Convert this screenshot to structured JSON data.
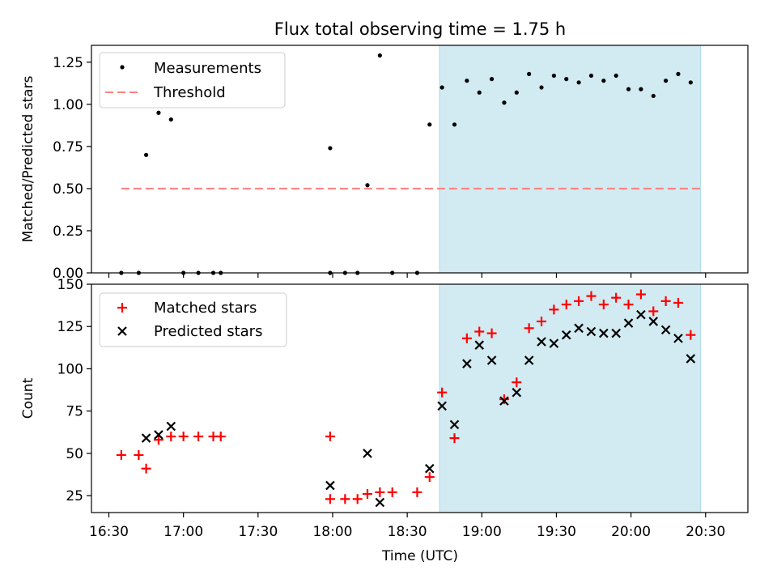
{
  "chart_data": [
    {
      "type": "scatter",
      "title": "Flux total observing time = 1.75 h",
      "xlabel": "",
      "ylabel": "Matched/Predicted stars",
      "ylim": [
        0,
        1.35
      ],
      "yticks": [
        "0.00",
        "0.25",
        "0.50",
        "0.75",
        "1.00",
        "1.25"
      ],
      "ytick_values": [
        0,
        0.25,
        0.5,
        0.75,
        1.0,
        1.25
      ],
      "x_unit": "minutes of day (UTC)",
      "xlim": [
        983,
        1247
      ],
      "shaded_region": {
        "x_start": 1123,
        "x_end": 1228,
        "color": "#add8e6"
      },
      "legend": {
        "position": "top-left",
        "entries": [
          "Measurements",
          "Threshold"
        ]
      },
      "threshold": {
        "name": "Threshold",
        "value": 0.5,
        "x_start": 995,
        "x_end": 1228,
        "color": "#ff7f7f"
      },
      "series": [
        {
          "name": "Measurements",
          "color": "#000000",
          "points": [
            [
              995,
              0
            ],
            [
              1002,
              0
            ],
            [
              1005,
              0.7
            ],
            [
              1010,
              0.95
            ],
            [
              1015,
              0.91
            ],
            [
              1020,
              0
            ],
            [
              1026,
              0
            ],
            [
              1032,
              0
            ],
            [
              1035,
              0
            ],
            [
              1079,
              0.74
            ],
            [
              1079,
              0
            ],
            [
              1085,
              0
            ],
            [
              1090,
              0
            ],
            [
              1094,
              0.52
            ],
            [
              1099,
              1.29
            ],
            [
              1104,
              0
            ],
            [
              1114,
              0
            ],
            [
              1119,
              0.88
            ],
            [
              1124,
              1.1
            ],
            [
              1129,
              0.88
            ],
            [
              1134,
              1.14
            ],
            [
              1139,
              1.07
            ],
            [
              1144,
              1.15
            ],
            [
              1149,
              1.01
            ],
            [
              1154,
              1.07
            ],
            [
              1159,
              1.18
            ],
            [
              1164,
              1.1
            ],
            [
              1169,
              1.17
            ],
            [
              1174,
              1.15
            ],
            [
              1179,
              1.13
            ],
            [
              1184,
              1.17
            ],
            [
              1189,
              1.14
            ],
            [
              1194,
              1.17
            ],
            [
              1199,
              1.09
            ],
            [
              1204,
              1.09
            ],
            [
              1209,
              1.05
            ],
            [
              1214,
              1.14
            ],
            [
              1219,
              1.18
            ],
            [
              1224,
              1.13
            ]
          ]
        }
      ]
    },
    {
      "type": "scatter",
      "title": "",
      "xlabel": "Time (UTC)",
      "ylabel": "Count",
      "ylim": [
        15,
        150
      ],
      "yticks": [
        "25",
        "50",
        "75",
        "100",
        "125",
        "150"
      ],
      "ytick_values": [
        25,
        50,
        75,
        100,
        125,
        150
      ],
      "x_unit": "minutes of day (UTC)",
      "xlim": [
        983,
        1247
      ],
      "xticks": [
        "16:30",
        "17:00",
        "17:30",
        "18:00",
        "18:30",
        "19:00",
        "19:30",
        "20:00",
        "20:30"
      ],
      "xtick_values": [
        990,
        1020,
        1050,
        1080,
        1110,
        1140,
        1170,
        1200,
        1230
      ],
      "shaded_region": {
        "x_start": 1123,
        "x_end": 1228,
        "color": "#add8e6"
      },
      "legend": {
        "position": "top-left",
        "entries": [
          "Matched stars",
          "Predicted stars"
        ]
      },
      "series": [
        {
          "name": "Matched stars",
          "marker": "plus",
          "color": "#ff0000",
          "points": [
            [
              995,
              49
            ],
            [
              1002,
              49
            ],
            [
              1005,
              41
            ],
            [
              1010,
              58
            ],
            [
              1015,
              60
            ],
            [
              1020,
              60
            ],
            [
              1026,
              60
            ],
            [
              1032,
              60
            ],
            [
              1035,
              60
            ],
            [
              1079,
              60
            ],
            [
              1079,
              23
            ],
            [
              1085,
              23
            ],
            [
              1090,
              23
            ],
            [
              1094,
              26
            ],
            [
              1099,
              27
            ],
            [
              1104,
              27
            ],
            [
              1114,
              27
            ],
            [
              1119,
              36
            ],
            [
              1124,
              86
            ],
            [
              1129,
              59
            ],
            [
              1134,
              118
            ],
            [
              1139,
              122
            ],
            [
              1144,
              121
            ],
            [
              1149,
              82
            ],
            [
              1154,
              92
            ],
            [
              1159,
              124
            ],
            [
              1164,
              128
            ],
            [
              1169,
              135
            ],
            [
              1174,
              138
            ],
            [
              1179,
              140
            ],
            [
              1184,
              143
            ],
            [
              1189,
              138
            ],
            [
              1194,
              142
            ],
            [
              1199,
              138
            ],
            [
              1204,
              144
            ],
            [
              1209,
              134
            ],
            [
              1214,
              140
            ],
            [
              1219,
              139
            ],
            [
              1224,
              120
            ]
          ]
        },
        {
          "name": "Predicted stars",
          "marker": "x",
          "color": "#000000",
          "points": [
            [
              1005,
              59
            ],
            [
              1010,
              61
            ],
            [
              1015,
              66
            ],
            [
              1079,
              31
            ],
            [
              1094,
              50
            ],
            [
              1099,
              21
            ],
            [
              1119,
              41
            ],
            [
              1124,
              78
            ],
            [
              1129,
              67
            ],
            [
              1134,
              103
            ],
            [
              1139,
              114
            ],
            [
              1144,
              105
            ],
            [
              1149,
              81
            ],
            [
              1154,
              86
            ],
            [
              1159,
              105
            ],
            [
              1164,
              116
            ],
            [
              1169,
              115
            ],
            [
              1174,
              120
            ],
            [
              1179,
              124
            ],
            [
              1184,
              122
            ],
            [
              1189,
              121
            ],
            [
              1194,
              121
            ],
            [
              1199,
              127
            ],
            [
              1204,
              132
            ],
            [
              1209,
              128
            ],
            [
              1214,
              123
            ],
            [
              1219,
              118
            ],
            [
              1224,
              106
            ]
          ]
        }
      ]
    }
  ]
}
